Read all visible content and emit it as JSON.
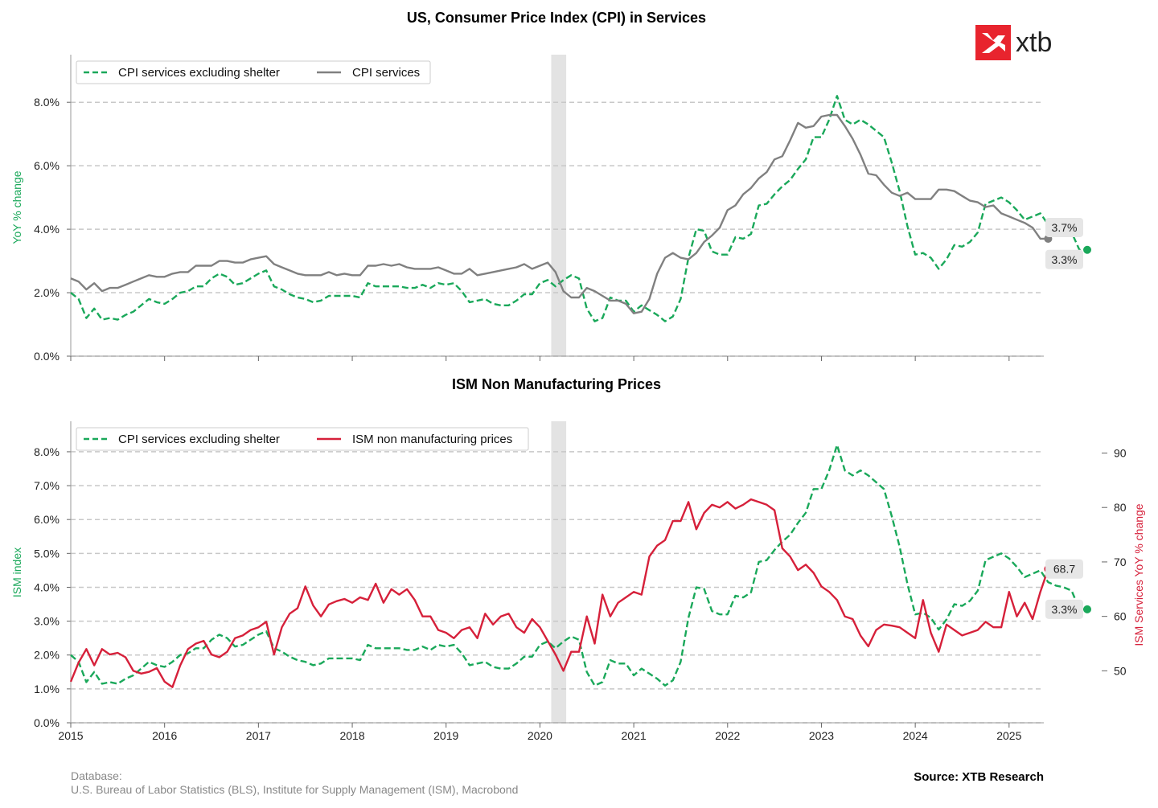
{
  "colors": {
    "ex_shelter": "#1aa85a",
    "cpi_services": "#808080",
    "ism": "#d6203a",
    "recession": "#e3e3e3",
    "grid": "#c8c8c8",
    "logo_red": "#e8242e"
  },
  "logo": {
    "text": "xtb"
  },
  "footer": {
    "database_label": "Database:",
    "database_sources": "U.S. Bureau of Labor Statistics (BLS), Institute for Supply Management (ISM), Macrobond",
    "source": "Source: XTB Research"
  },
  "chart_data": [
    {
      "type": "line",
      "title": "US, Consumer Price Index (CPI) in Services",
      "ylabel": "YoY % change",
      "ylim": [
        0,
        9.5
      ],
      "yticks": [
        "0.0%",
        "2.0%",
        "4.0%",
        "6.0%",
        "8.0%"
      ],
      "xlim": [
        2015.0,
        2025.37
      ],
      "x_ticks_labeled": false,
      "grid": "horizontal dashed",
      "legend_position": "top-left",
      "shaded_period": [
        2020.12,
        2020.28
      ],
      "x_start": 2015.0,
      "x_step": 0.08333,
      "series": [
        {
          "name": "CPI services excluding shelter",
          "style": "dashed",
          "color": "#1aa85a",
          "end_label": "3.3%",
          "values": [
            2.0,
            1.8,
            1.2,
            1.5,
            1.15,
            1.2,
            1.15,
            1.3,
            1.4,
            1.6,
            1.8,
            1.7,
            1.65,
            1.8,
            2.0,
            2.05,
            2.2,
            2.2,
            2.45,
            2.6,
            2.5,
            2.25,
            2.3,
            2.45,
            2.6,
            2.7,
            2.2,
            2.1,
            1.95,
            1.85,
            1.8,
            1.7,
            1.75,
            1.9,
            1.9,
            1.9,
            1.9,
            1.85,
            2.3,
            2.2,
            2.2,
            2.2,
            2.2,
            2.15,
            2.15,
            2.25,
            2.15,
            2.3,
            2.25,
            2.3,
            2.05,
            1.7,
            1.75,
            1.8,
            1.65,
            1.6,
            1.6,
            1.75,
            1.95,
            1.95,
            2.3,
            2.4,
            2.2,
            2.4,
            2.55,
            2.45,
            1.5,
            1.1,
            1.2,
            1.85,
            1.75,
            1.75,
            1.4,
            1.6,
            1.45,
            1.3,
            1.1,
            1.25,
            1.8,
            3.1,
            4.0,
            3.95,
            3.3,
            3.2,
            3.2,
            3.75,
            3.7,
            3.85,
            4.75,
            4.8,
            5.1,
            5.35,
            5.55,
            5.9,
            6.2,
            6.9,
            6.9,
            7.45,
            8.2,
            7.45,
            7.3,
            7.45,
            7.3,
            7.1,
            6.9,
            6.1,
            5.2,
            4.1,
            3.2,
            3.25,
            3.1,
            2.75,
            3.05,
            3.5,
            3.45,
            3.6,
            3.9,
            4.8,
            4.9,
            5.0,
            4.85,
            4.6,
            4.3,
            4.4,
            4.5,
            4.15,
            4.05,
            4.0,
            3.9,
            3.35,
            3.35
          ]
        },
        {
          "name": "CPI services",
          "style": "solid",
          "color": "#808080",
          "end_label": "3.7%",
          "values": [
            2.45,
            2.35,
            2.1,
            2.3,
            2.05,
            2.15,
            2.15,
            2.25,
            2.35,
            2.45,
            2.55,
            2.5,
            2.5,
            2.6,
            2.65,
            2.65,
            2.85,
            2.85,
            2.85,
            3.0,
            3.0,
            2.95,
            2.95,
            3.05,
            3.1,
            3.15,
            2.9,
            2.8,
            2.7,
            2.6,
            2.55,
            2.55,
            2.55,
            2.65,
            2.55,
            2.6,
            2.55,
            2.55,
            2.85,
            2.85,
            2.9,
            2.85,
            2.9,
            2.8,
            2.75,
            2.75,
            2.75,
            2.8,
            2.7,
            2.6,
            2.6,
            2.75,
            2.55,
            2.6,
            2.65,
            2.7,
            2.75,
            2.8,
            2.9,
            2.75,
            2.85,
            2.95,
            2.65,
            2.05,
            1.85,
            1.85,
            2.15,
            2.05,
            1.9,
            1.75,
            1.75,
            1.65,
            1.35,
            1.4,
            1.8,
            2.6,
            3.1,
            3.25,
            3.1,
            3.05,
            3.25,
            3.6,
            3.8,
            4.05,
            4.6,
            4.75,
            5.1,
            5.3,
            5.6,
            5.8,
            6.2,
            6.3,
            6.8,
            7.35,
            7.2,
            7.25,
            7.55,
            7.6,
            7.6,
            7.25,
            6.85,
            6.35,
            5.75,
            5.7,
            5.4,
            5.15,
            5.05,
            5.15,
            4.95,
            4.95,
            4.95,
            5.25,
            5.25,
            5.2,
            5.05,
            4.9,
            4.85,
            4.7,
            4.75,
            4.5,
            4.4,
            4.3,
            4.2,
            4.05,
            3.7,
            3.7
          ]
        }
      ]
    },
    {
      "type": "line",
      "title": "ISM Non Manufacturing Prices",
      "ylabel": "ISM index",
      "ylabel_right": "ISM Services YoY % change",
      "ylim": [
        0,
        8.9
      ],
      "yticks": [
        "0.0%",
        "1.0%",
        "2.0%",
        "3.0%",
        "4.0%",
        "5.0%",
        "6.0%",
        "7.0%",
        "8.0%"
      ],
      "ylim_right": [
        40.46,
        95.83
      ],
      "yticks_right": [
        "50",
        "60",
        "70",
        "80",
        "90"
      ],
      "xlim": [
        2015.0,
        2025.37
      ],
      "xticks": [
        "2015",
        "2016",
        "2017",
        "2018",
        "2019",
        "2020",
        "2021",
        "2022",
        "2023",
        "2024",
        "2025"
      ],
      "grid": "horizontal dashed",
      "legend_position": "top-left",
      "shaded_period": [
        2020.12,
        2020.28
      ],
      "x_start": 2015.0,
      "x_step": 0.08333,
      "series": [
        {
          "name": "CPI services excluding shelter",
          "style": "dashed",
          "color": "#1aa85a",
          "axis": "left",
          "end_label": "3.3%",
          "values": [
            2.0,
            1.8,
            1.2,
            1.5,
            1.15,
            1.2,
            1.15,
            1.3,
            1.4,
            1.6,
            1.8,
            1.7,
            1.65,
            1.8,
            2.0,
            2.05,
            2.2,
            2.2,
            2.45,
            2.6,
            2.5,
            2.25,
            2.3,
            2.45,
            2.6,
            2.7,
            2.2,
            2.1,
            1.95,
            1.85,
            1.8,
            1.7,
            1.75,
            1.9,
            1.9,
            1.9,
            1.9,
            1.85,
            2.3,
            2.2,
            2.2,
            2.2,
            2.2,
            2.15,
            2.15,
            2.25,
            2.15,
            2.3,
            2.25,
            2.3,
            2.05,
            1.7,
            1.75,
            1.8,
            1.65,
            1.6,
            1.6,
            1.75,
            1.95,
            1.95,
            2.3,
            2.4,
            2.2,
            2.4,
            2.55,
            2.45,
            1.5,
            1.1,
            1.2,
            1.85,
            1.75,
            1.75,
            1.4,
            1.6,
            1.45,
            1.3,
            1.1,
            1.25,
            1.8,
            3.1,
            4.0,
            3.95,
            3.3,
            3.2,
            3.2,
            3.75,
            3.7,
            3.85,
            4.75,
            4.8,
            5.1,
            5.35,
            5.55,
            5.9,
            6.2,
            6.9,
            6.9,
            7.45,
            8.2,
            7.45,
            7.3,
            7.45,
            7.3,
            7.1,
            6.9,
            6.1,
            5.2,
            4.1,
            3.2,
            3.25,
            3.1,
            2.75,
            3.05,
            3.5,
            3.45,
            3.6,
            3.9,
            4.8,
            4.9,
            5.0,
            4.85,
            4.6,
            4.3,
            4.4,
            4.5,
            4.15,
            4.05,
            4.0,
            3.9,
            3.35,
            3.35
          ]
        },
        {
          "name": "ISM non manufacturing prices",
          "style": "solid",
          "color": "#d6203a",
          "axis": "right",
          "end_label": "68.7",
          "values": [
            48,
            51.5,
            54,
            51,
            54,
            53,
            53.3,
            52.5,
            50,
            49.5,
            49.8,
            50.5,
            48,
            47,
            51,
            54,
            55,
            55.5,
            53,
            52.5,
            53.5,
            56,
            56.5,
            57.5,
            58,
            59,
            53,
            58,
            60.5,
            61.5,
            65.5,
            62,
            60,
            62.2,
            62.8,
            63.2,
            62.5,
            63.5,
            63,
            66,
            62.5,
            65,
            64,
            65,
            63,
            60,
            60,
            57.5,
            57,
            56,
            57.5,
            58,
            56,
            60.5,
            58.5,
            60,
            60.5,
            58,
            57,
            59.5,
            58,
            55.5,
            53,
            50,
            53.5,
            53.5,
            60,
            55,
            64,
            60,
            62.5,
            63.5,
            64.5,
            64,
            71,
            73,
            74,
            77.5,
            77.5,
            81,
            76,
            79,
            80.5,
            80,
            81,
            79.8,
            80.5,
            81.5,
            81,
            80.5,
            79.5,
            72.5,
            71,
            68.5,
            69.5,
            68,
            65.5,
            64.5,
            63,
            60,
            59.5,
            56.5,
            54.5,
            57.5,
            58.5,
            58.3,
            58,
            57,
            56,
            63,
            57,
            53.5,
            58.5,
            57.5,
            56.5,
            57,
            57.5,
            59,
            58,
            58,
            64.5,
            60,
            62.5,
            59.5,
            64.5,
            68.7
          ]
        }
      ]
    }
  ]
}
